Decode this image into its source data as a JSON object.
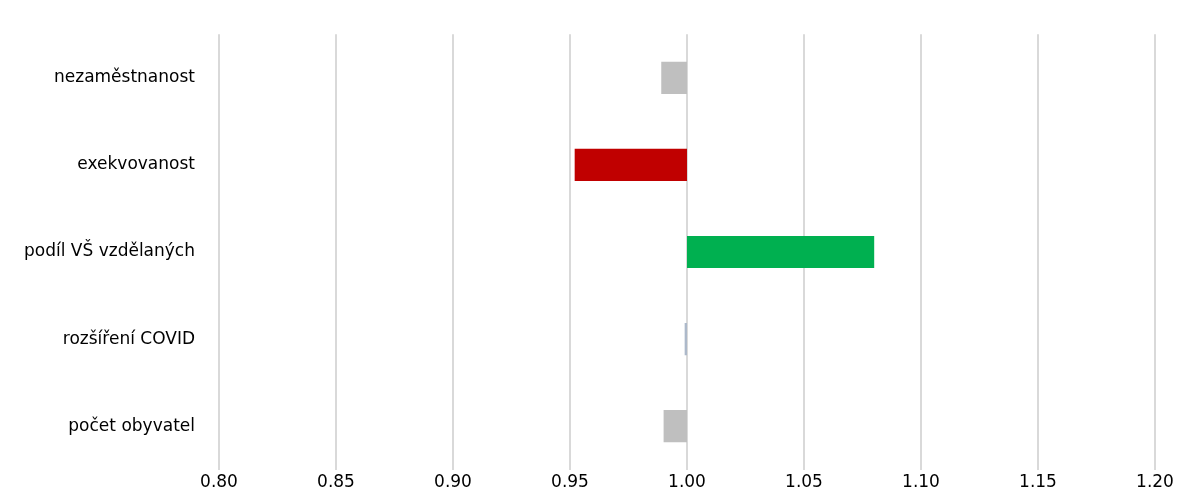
{
  "chart_data": {
    "type": "bar",
    "orientation": "horizontal",
    "categories": [
      "nezaměstnanost",
      "exekvovanost",
      "podíl VŠ vzdělaných",
      "rozšíření COVID",
      "počet obyvatel"
    ],
    "base": [
      1,
      1,
      1,
      1,
      1
    ],
    "values": [
      -0.011,
      -0.048,
      0.08,
      -0.001,
      -0.01
    ],
    "colors": [
      "#bfbfbf",
      "#c00000",
      "#00b050",
      "#adb9ca",
      "#bfbfbf"
    ],
    "xlim": [
      0.8,
      1.2
    ],
    "xticks": [
      {
        "value": 0.8,
        "label": "0.80"
      },
      {
        "value": 0.85,
        "label": "0.85"
      },
      {
        "value": 0.9,
        "label": "0.90"
      },
      {
        "value": 0.95,
        "label": "0.95"
      },
      {
        "value": 1.0,
        "label": "1.00"
      },
      {
        "value": 1.05,
        "label": "1.05"
      },
      {
        "value": 1.1,
        "label": "1.10"
      },
      {
        "value": 1.15,
        "label": "1.15"
      },
      {
        "value": 1.2,
        "label": "1.20"
      }
    ],
    "grid": "x",
    "legend": false
  }
}
